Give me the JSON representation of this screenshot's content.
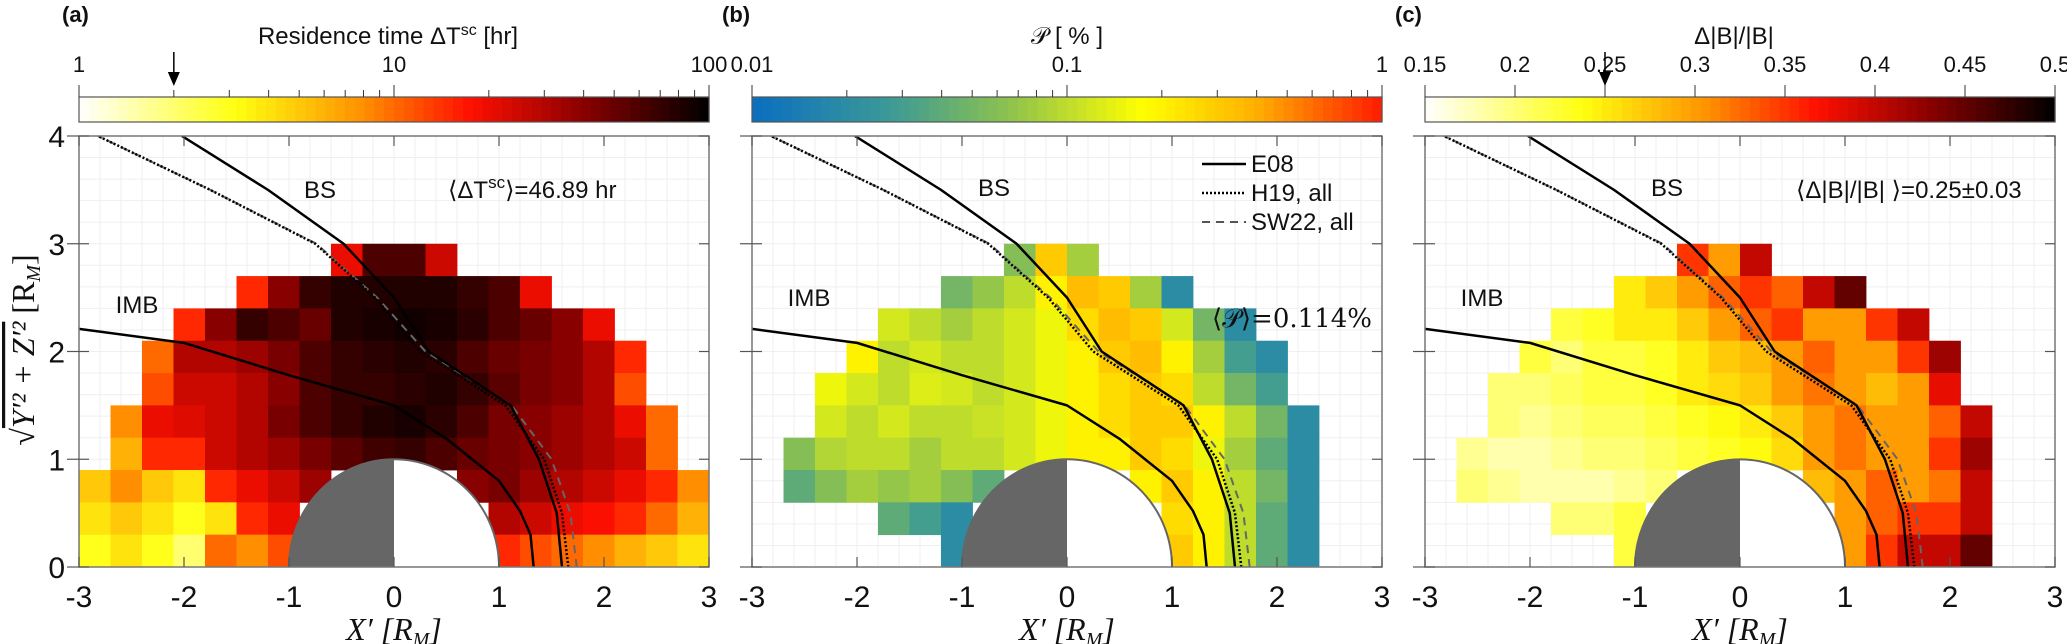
{
  "panels": [
    {
      "label": "(a)",
      "cb_title_pre": "Residence time    ΔT",
      "cb_title_sup": "sc",
      "cb_title_post": " [hr]",
      "annotation_pre": "⟨ΔT",
      "annotation_sup": "sc",
      "annotation_post": "⟩=46.89 hr",
      "bs": "BS",
      "imb": "IMB"
    },
    {
      "label": "(b)",
      "cb_title": "𝒫 [ % ]",
      "annotation": "⟨𝒫⟩=0.114%",
      "bs": "BS",
      "imb": "IMB"
    },
    {
      "label": "(c)",
      "cb_title": "Δ|B|/|B|",
      "annotation": "⟨Δ|B|/|B| ⟩=0.25±0.03",
      "bs": "BS",
      "imb": "IMB"
    }
  ],
  "axes": {
    "xlabel_main": "X′ [R",
    "xlabel_sub": "M",
    "xlabel_end": "]",
    "ylabel_root": "√",
    "ylabel_main": "Y′² + Z′²",
    "ylabel_bracket": " [R",
    "ylabel_sub": "M",
    "ylabel_end": "]",
    "xticks": [
      "-3",
      "-2",
      "-1",
      "0",
      "1",
      "2",
      "3"
    ],
    "yticks": [
      "0",
      "1",
      "2",
      "3",
      "4"
    ]
  },
  "legend": [
    {
      "label": "E08",
      "style": "solid",
      "color": "#000000"
    },
    {
      "label": "H19, all",
      "style": "dotted",
      "color": "#000000"
    },
    {
      "label": "SW22, all",
      "style": "dashed",
      "color": "#555555"
    }
  ],
  "boundaries": {
    "IMB": [
      [
        -3,
        2.21
      ],
      [
        -2,
        2.08
      ],
      [
        -1,
        1.78
      ],
      [
        0,
        1.5
      ],
      [
        0.5,
        1.19
      ],
      [
        1,
        0.8
      ],
      [
        1.2,
        0.52
      ],
      [
        1.3,
        0.3
      ],
      [
        1.33,
        0
      ]
    ],
    "BS_E08": [
      [
        1.6,
        0
      ],
      [
        1.55,
        0.5
      ],
      [
        1.38,
        1
      ],
      [
        1.11,
        1.5
      ],
      [
        0.33,
        2
      ],
      [
        0,
        2.5
      ],
      [
        -0.48,
        3
      ],
      [
        -1.2,
        3.5
      ],
      [
        -2.02,
        4
      ]
    ],
    "BS_H19": [
      [
        1.66,
        0
      ],
      [
        1.6,
        0.5
      ],
      [
        1.43,
        1
      ],
      [
        1.06,
        1.5
      ],
      [
        0.25,
        2
      ],
      [
        -0.18,
        2.5
      ],
      [
        -0.75,
        3
      ],
      [
        -1.75,
        3.5
      ],
      [
        -2.82,
        4
      ]
    ],
    "BS_SW22": [
      [
        1.74,
        0
      ],
      [
        1.68,
        0.5
      ],
      [
        1.5,
        1
      ],
      [
        1.12,
        1.5
      ],
      [
        0.3,
        2
      ],
      [
        -0.16,
        2.5
      ],
      [
        -0.74,
        3
      ],
      [
        -1.75,
        3.5
      ],
      [
        -2.82,
        4
      ]
    ],
    "planet_radius": 1,
    "planet_nightside_color": "#666666"
  },
  "chart_data": [
    {
      "type": "heatmap",
      "xlim": [
        -3,
        3
      ],
      "ylim": [
        0,
        4
      ],
      "grid": true,
      "colorbar": {
        "scale": "log",
        "range": [
          1,
          100
        ],
        "ticks": [
          "1",
          "10",
          "100"
        ],
        "tick_values": [
          1,
          10,
          100
        ],
        "marker_value": 2,
        "colormap": "hot-reversed"
      },
      "bin_width": 0.3,
      "x_centers": [
        -2.85,
        -2.55,
        -2.25,
        -1.95,
        -1.65,
        -1.35,
        -1.05,
        -0.75,
        -0.45,
        -0.15,
        0.15,
        0.45,
        0.75,
        1.05,
        1.35,
        1.65,
        1.95,
        2.25,
        2.55,
        2.85
      ],
      "y_centers": [
        2.85,
        2.55,
        2.25,
        1.95,
        1.65,
        1.35,
        1.05,
        0.75,
        0.45,
        0.15
      ],
      "values": [
        [
          null,
          null,
          null,
          null,
          null,
          null,
          null,
          null,
          20,
          60,
          60,
          25,
          null,
          null,
          null,
          null,
          null,
          null,
          null,
          null
        ],
        [
          null,
          null,
          null,
          null,
          null,
          15,
          40,
          70,
          80,
          80,
          80,
          80,
          70,
          60,
          20,
          null,
          null,
          null,
          null,
          null
        ],
        [
          null,
          null,
          null,
          15,
          40,
          70,
          60,
          50,
          80,
          85,
          90,
          85,
          75,
          60,
          50,
          40,
          20,
          null,
          null,
          null
        ],
        [
          null,
          null,
          10,
          30,
          30,
          35,
          45,
          60,
          70,
          75,
          80,
          75,
          60,
          50,
          45,
          40,
          30,
          15,
          null,
          null
        ],
        [
          null,
          null,
          12,
          25,
          25,
          30,
          40,
          60,
          70,
          70,
          75,
          80,
          70,
          55,
          45,
          40,
          30,
          12,
          null,
          null
        ],
        [
          null,
          8,
          20,
          22,
          25,
          30,
          45,
          60,
          70,
          80,
          85,
          75,
          60,
          45,
          40,
          35,
          30,
          20,
          10,
          null
        ],
        [
          null,
          6,
          15,
          15,
          25,
          30,
          35,
          45,
          55,
          65,
          70,
          60,
          50,
          45,
          40,
          35,
          30,
          25,
          10,
          null
        ],
        [
          5,
          8,
          5,
          4,
          15,
          20,
          25,
          35,
          null,
          null,
          null,
          null,
          40,
          45,
          35,
          30,
          25,
          20,
          15,
          8
        ],
        [
          4,
          5,
          4,
          3,
          4,
          15,
          20,
          null,
          null,
          null,
          null,
          null,
          null,
          30,
          25,
          20,
          18,
          15,
          10,
          6
        ],
        [
          3,
          4,
          3,
          2,
          10,
          8,
          12,
          null,
          null,
          null,
          null,
          null,
          null,
          15,
          12,
          10,
          8,
          6,
          5,
          4
        ]
      ]
    },
    {
      "type": "heatmap",
      "xlim": [
        -3,
        3
      ],
      "ylim": [
        0,
        4
      ],
      "grid": true,
      "colorbar": {
        "scale": "log",
        "range": [
          0.01,
          1
        ],
        "ticks": [
          "0.01",
          "0.1",
          "1"
        ],
        "tick_values": [
          0.01,
          0.1,
          1
        ],
        "colormap": "parula-to-red"
      },
      "bin_width": 0.3,
      "x_centers": [
        -2.85,
        -2.55,
        -2.25,
        -1.95,
        -1.65,
        -1.35,
        -1.05,
        -0.75,
        -0.45,
        -0.15,
        0.15,
        0.45,
        0.75,
        1.05,
        1.35,
        1.65,
        1.95,
        2.25,
        2.55,
        2.85
      ],
      "y_centers": [
        2.85,
        2.55,
        2.25,
        1.95,
        1.65,
        1.35,
        1.05,
        0.75,
        0.45,
        0.15
      ],
      "values": [
        [
          null,
          null,
          null,
          null,
          null,
          null,
          null,
          null,
          0.06,
          0.3,
          0.08,
          null,
          null,
          null,
          null,
          null,
          null,
          null,
          null,
          null
        ],
        [
          null,
          null,
          null,
          null,
          null,
          null,
          0.05,
          0.07,
          0.1,
          0.2,
          0.35,
          0.3,
          0.08,
          0.02,
          null,
          null,
          null,
          null,
          null,
          null
        ],
        [
          null,
          null,
          null,
          null,
          0.12,
          0.1,
          0.08,
          0.1,
          0.12,
          0.15,
          0.25,
          0.35,
          0.3,
          0.12,
          0.05,
          0.02,
          null,
          null,
          null,
          null
        ],
        [
          null,
          null,
          null,
          0.2,
          0.1,
          0.12,
          0.1,
          0.1,
          0.12,
          0.15,
          0.2,
          0.3,
          0.35,
          0.2,
          0.08,
          0.03,
          0.02,
          null,
          null,
          null
        ],
        [
          null,
          null,
          0.15,
          0.12,
          0.1,
          0.13,
          0.12,
          0.1,
          0.12,
          0.15,
          0.2,
          0.25,
          0.3,
          0.25,
          0.1,
          0.05,
          0.03,
          null,
          null,
          null
        ],
        [
          null,
          null,
          0.12,
          0.1,
          0.12,
          0.1,
          0.1,
          0.11,
          0.12,
          0.15,
          0.2,
          0.25,
          0.3,
          0.3,
          0.2,
          0.1,
          0.05,
          0.02,
          null,
          null
        ],
        [
          null,
          0.06,
          0.09,
          0.1,
          0.1,
          0.08,
          0.1,
          0.1,
          0.12,
          0.15,
          0.2,
          0.2,
          0.3,
          0.25,
          0.15,
          0.08,
          0.04,
          0.02,
          null,
          null
        ],
        [
          null,
          0.04,
          0.06,
          0.08,
          0.07,
          0.08,
          0.06,
          0.04,
          null,
          null,
          null,
          null,
          0.2,
          0.3,
          0.2,
          0.1,
          0.05,
          0.02,
          null,
          null
        ],
        [
          null,
          null,
          null,
          null,
          0.04,
          0.03,
          0.02,
          null,
          null,
          null,
          null,
          null,
          null,
          0.25,
          0.2,
          0.1,
          0.04,
          0.02,
          null,
          null
        ],
        [
          null,
          null,
          null,
          null,
          null,
          null,
          0.02,
          null,
          null,
          null,
          null,
          null,
          null,
          0.3,
          0.2,
          0.1,
          0.04,
          0.02,
          null,
          null
        ]
      ]
    },
    {
      "type": "heatmap",
      "xlim": [
        -3,
        3
      ],
      "ylim": [
        0,
        4
      ],
      "grid": true,
      "colorbar": {
        "scale": "linear",
        "range": [
          0.15,
          0.5
        ],
        "ticks": [
          "0.15",
          "0.2",
          "0.25",
          "0.3",
          "0.35",
          "0.4",
          "0.45",
          "0.5"
        ],
        "tick_values": [
          0.15,
          0.2,
          0.25,
          0.3,
          0.35,
          0.4,
          0.45,
          0.5
        ],
        "marker_value": 0.25,
        "colormap": "hot-reversed"
      },
      "bin_width": 0.3,
      "x_centers": [
        -2.85,
        -2.55,
        -2.25,
        -1.95,
        -1.65,
        -1.35,
        -1.05,
        -0.75,
        -0.45,
        -0.15,
        0.15,
        0.45,
        0.75,
        1.05,
        1.35,
        1.65,
        1.95,
        2.25,
        2.55,
        2.85
      ],
      "y_centers": [
        2.85,
        2.55,
        2.25,
        1.95,
        1.65,
        1.35,
        1.05,
        0.75,
        0.45,
        0.15
      ],
      "values": [
        [
          null,
          null,
          null,
          null,
          null,
          null,
          null,
          null,
          0.35,
          0.3,
          0.4,
          null,
          null,
          null,
          null,
          null,
          null,
          null,
          null,
          null
        ],
        [
          null,
          null,
          null,
          null,
          null,
          null,
          0.25,
          0.27,
          0.3,
          0.33,
          0.35,
          0.33,
          0.4,
          0.45,
          null,
          null,
          null,
          null,
          null,
          null
        ],
        [
          null,
          null,
          null,
          null,
          0.22,
          0.23,
          0.25,
          0.25,
          0.27,
          0.3,
          0.33,
          0.35,
          0.3,
          0.3,
          0.35,
          0.4,
          null,
          null,
          null,
          null
        ],
        [
          null,
          null,
          null,
          0.22,
          0.2,
          0.22,
          0.22,
          0.23,
          0.25,
          0.27,
          0.28,
          0.3,
          0.33,
          0.3,
          0.3,
          0.35,
          0.42,
          null,
          null,
          null
        ],
        [
          null,
          null,
          0.2,
          0.2,
          0.21,
          0.22,
          0.22,
          0.23,
          0.25,
          0.26,
          0.27,
          0.3,
          0.32,
          0.3,
          0.28,
          0.3,
          0.38,
          null,
          null,
          null
        ],
        [
          null,
          null,
          0.2,
          0.19,
          0.2,
          0.21,
          0.21,
          0.22,
          0.23,
          0.24,
          0.25,
          0.27,
          0.3,
          0.32,
          0.3,
          0.3,
          0.33,
          0.4,
          null,
          null
        ],
        [
          null,
          0.19,
          0.18,
          0.18,
          0.19,
          0.2,
          0.2,
          0.21,
          0.22,
          0.23,
          0.24,
          0.26,
          0.3,
          0.32,
          0.3,
          0.3,
          0.35,
          0.42,
          null,
          null
        ],
        [
          null,
          0.2,
          0.19,
          0.18,
          0.18,
          0.18,
          0.19,
          0.2,
          null,
          null,
          null,
          null,
          0.28,
          0.3,
          0.33,
          0.3,
          0.32,
          0.4,
          null,
          null
        ],
        [
          null,
          null,
          null,
          null,
          0.2,
          0.2,
          0.22,
          null,
          null,
          null,
          null,
          null,
          null,
          0.3,
          0.33,
          0.35,
          0.35,
          0.4,
          null,
          null
        ],
        [
          null,
          null,
          null,
          null,
          null,
          null,
          0.22,
          null,
          null,
          null,
          null,
          null,
          null,
          0.3,
          0.35,
          0.4,
          0.4,
          0.45,
          null,
          null
        ]
      ]
    }
  ]
}
